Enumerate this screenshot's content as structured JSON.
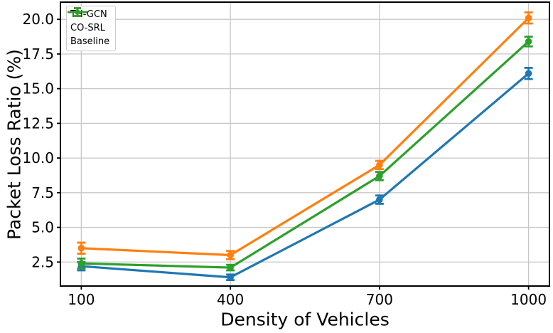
{
  "chart_data": {
    "type": "line",
    "title": "",
    "xlabel": "Density of Vehicles",
    "ylabel": "Packet Loss Ratio (%)",
    "x": [
      100,
      400,
      700,
      1000
    ],
    "x_tick_labels": [
      "100",
      "400",
      "700",
      "1000"
    ],
    "y_ticks": [
      2.5,
      5.0,
      7.5,
      10.0,
      12.5,
      15.0,
      17.5,
      20.0
    ],
    "y_tick_labels": [
      "2.5",
      "5.0",
      "7.5",
      "10.0",
      "12.5",
      "15.0",
      "17.5",
      "20.0"
    ],
    "xlim": [
      58,
      1042
    ],
    "ylim": [
      0.77,
      21.24
    ],
    "grid": true,
    "grid_color": "#c7c7c7",
    "legend_position": "upper-left",
    "series": [
      {
        "name": "TH-GCN",
        "color": "#1f77b4",
        "values": [
          2.2,
          1.4,
          7.0,
          16.1
        ],
        "errors": [
          0.3,
          0.2,
          0.3,
          0.4
        ]
      },
      {
        "name": "CO-SRL",
        "color": "#ff7f0e",
        "values": [
          3.5,
          3.0,
          9.5,
          20.1
        ],
        "errors": [
          0.4,
          0.3,
          0.3,
          0.4
        ]
      },
      {
        "name": "Baseline",
        "color": "#2ca02c",
        "values": [
          2.4,
          2.1,
          8.7,
          18.4
        ],
        "errors": [
          0.35,
          0.2,
          0.3,
          0.35
        ]
      }
    ]
  }
}
